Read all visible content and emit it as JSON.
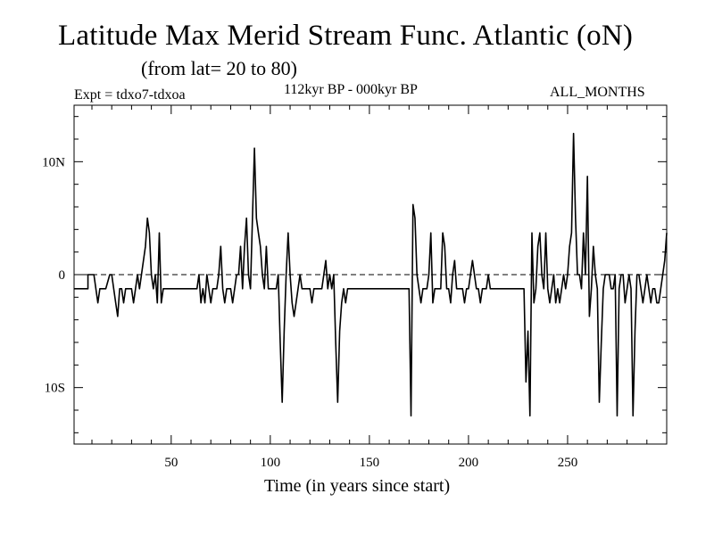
{
  "header": {
    "title": "Latitude Max Merid Stream Func. Atlantic (oN)",
    "subtitle": "(from lat= 20 to 80)",
    "expt": "Expt = tdxo7-tdxoa",
    "period": "112kyr BP - 000kyr BP",
    "months": "ALL_MONTHS"
  },
  "chart_data": {
    "type": "line",
    "title": "Latitude Max Merid Stream Func. Atlantic (oN)",
    "xlabel": "Time (in years since start)",
    "ylabel": "",
    "xlim": [
      1,
      300
    ],
    "ylim": [
      -15,
      15
    ],
    "x_ticks": [
      50,
      100,
      150,
      200,
      250
    ],
    "x_tick_labels": [
      "50",
      "100",
      "150",
      "200",
      "250"
    ],
    "y_ticks": [
      10,
      0,
      -10
    ],
    "y_tick_labels": [
      "10N",
      "0",
      "10S"
    ],
    "reference_line": {
      "y": 0,
      "style": "dashed"
    },
    "grid": false,
    "baseline_value": -1.25,
    "series": [
      {
        "points": [
          [
            1,
            -1.25
          ],
          [
            8,
            -1.25
          ],
          [
            8,
            0
          ],
          [
            11,
            0
          ],
          [
            12,
            -1.25
          ],
          [
            13,
            -2.5
          ],
          [
            14,
            -1.25
          ],
          [
            17,
            -1.25
          ],
          [
            19,
            0
          ],
          [
            20,
            0
          ],
          [
            21,
            -1.25
          ],
          [
            22,
            -2.5
          ],
          [
            23,
            -3.7
          ],
          [
            24,
            -1.25
          ],
          [
            25,
            -1.25
          ],
          [
            26,
            -2.5
          ],
          [
            27,
            -1.25
          ],
          [
            30,
            -1.25
          ],
          [
            31,
            -2.5
          ],
          [
            32,
            -1.25
          ],
          [
            33,
            0
          ],
          [
            34,
            -1.25
          ],
          [
            35,
            0
          ],
          [
            36,
            1.25
          ],
          [
            37,
            2.5
          ],
          [
            38,
            5
          ],
          [
            39,
            3.7
          ],
          [
            40,
            0
          ],
          [
            41,
            -1.25
          ],
          [
            42,
            0
          ],
          [
            43,
            -2.5
          ],
          [
            44,
            3.7
          ],
          [
            45,
            -2.5
          ],
          [
            46,
            -1.25
          ],
          [
            50,
            -1.25
          ],
          [
            63,
            -1.25
          ],
          [
            64,
            0
          ],
          [
            65,
            -2.5
          ],
          [
            66,
            -1.25
          ],
          [
            67,
            -2.5
          ],
          [
            68,
            0
          ],
          [
            69,
            -1.25
          ],
          [
            70,
            -2.5
          ],
          [
            71,
            -1.25
          ],
          [
            73,
            -1.25
          ],
          [
            74,
            0
          ],
          [
            75,
            2.5
          ],
          [
            76,
            -1.25
          ],
          [
            77,
            -2.5
          ],
          [
            78,
            -1.25
          ],
          [
            80,
            -1.25
          ],
          [
            81,
            -2.5
          ],
          [
            82,
            -1.25
          ],
          [
            83,
            0
          ],
          [
            84,
            0
          ],
          [
            85,
            2.5
          ],
          [
            86,
            -1.25
          ],
          [
            87,
            2.5
          ],
          [
            88,
            5
          ],
          [
            89,
            0
          ],
          [
            90,
            -1.25
          ],
          [
            91,
            5
          ],
          [
            92,
            11.2
          ],
          [
            93,
            5
          ],
          [
            94,
            3.7
          ],
          [
            95,
            2.5
          ],
          [
            96,
            0
          ],
          [
            97,
            -1.25
          ],
          [
            98,
            2.5
          ],
          [
            99,
            -1.25
          ],
          [
            100,
            -1.25
          ],
          [
            103,
            -1.25
          ],
          [
            104,
            0
          ],
          [
            105,
            -6
          ],
          [
            106,
            -11.3
          ],
          [
            107,
            -5
          ],
          [
            108,
            0
          ],
          [
            109,
            3.7
          ],
          [
            110,
            0
          ],
          [
            111,
            -2.5
          ],
          [
            112,
            -3.7
          ],
          [
            113,
            -2.5
          ],
          [
            114,
            -1.25
          ],
          [
            115,
            0
          ],
          [
            116,
            -1.25
          ],
          [
            118,
            -1.25
          ],
          [
            120,
            -1.25
          ],
          [
            121,
            -2.5
          ],
          [
            122,
            -1.25
          ],
          [
            123,
            -1.25
          ],
          [
            124,
            -1.25
          ],
          [
            126,
            -1.25
          ],
          [
            127,
            0
          ],
          [
            128,
            1.25
          ],
          [
            129,
            -1.25
          ],
          [
            130,
            0
          ],
          [
            131,
            -1.25
          ],
          [
            132,
            0
          ],
          [
            133,
            -6
          ],
          [
            134,
            -11.3
          ],
          [
            135,
            -5
          ],
          [
            136,
            -2.5
          ],
          [
            137,
            -1.25
          ],
          [
            138,
            -2.5
          ],
          [
            139,
            -1.25
          ],
          [
            150,
            -1.25
          ],
          [
            170,
            -1.25
          ],
          [
            171,
            -12.5
          ],
          [
            172,
            6.2
          ],
          [
            173,
            5
          ],
          [
            174,
            0
          ],
          [
            175,
            -1.25
          ],
          [
            176,
            -2.5
          ],
          [
            177,
            -1.25
          ],
          [
            179,
            -1.25
          ],
          [
            180,
            0
          ],
          [
            181,
            3.7
          ],
          [
            182,
            -2.5
          ],
          [
            183,
            -1.25
          ],
          [
            184,
            -1.25
          ],
          [
            186,
            -1.25
          ],
          [
            187,
            3.7
          ],
          [
            188,
            2.5
          ],
          [
            189,
            -1.25
          ],
          [
            190,
            -1.25
          ],
          [
            191,
            -2.5
          ],
          [
            192,
            0
          ],
          [
            193,
            1.25
          ],
          [
            194,
            -1.25
          ],
          [
            195,
            -1.25
          ],
          [
            197,
            -1.25
          ],
          [
            198,
            -2.5
          ],
          [
            199,
            -1.25
          ],
          [
            200,
            -1.25
          ],
          [
            201,
            0
          ],
          [
            202,
            1.25
          ],
          [
            203,
            0
          ],
          [
            204,
            -1.25
          ],
          [
            205,
            -1.25
          ],
          [
            206,
            -2.5
          ],
          [
            207,
            -1.25
          ],
          [
            209,
            -1.25
          ],
          [
            210,
            0
          ],
          [
            211,
            -1.25
          ],
          [
            215,
            -1.25
          ],
          [
            228,
            -1.25
          ],
          [
            229,
            -9.5
          ],
          [
            230,
            -5
          ],
          [
            231,
            -12.5
          ],
          [
            232,
            3.7
          ],
          [
            233,
            -2.5
          ],
          [
            234,
            -1.25
          ],
          [
            235,
            2.5
          ],
          [
            236,
            3.7
          ],
          [
            237,
            0
          ],
          [
            238,
            -1.25
          ],
          [
            239,
            3.7
          ],
          [
            240,
            -1.25
          ],
          [
            241,
            -2.5
          ],
          [
            242,
            -1.25
          ],
          [
            243,
            0
          ],
          [
            244,
            -2.5
          ],
          [
            245,
            -1.25
          ],
          [
            246,
            -2.5
          ],
          [
            247,
            -1.25
          ],
          [
            248,
            0
          ],
          [
            249,
            -1.25
          ],
          [
            250,
            0
          ],
          [
            251,
            2.5
          ],
          [
            252,
            3.7
          ],
          [
            253,
            12.5
          ],
          [
            254,
            5
          ],
          [
            255,
            0
          ],
          [
            256,
            0
          ],
          [
            257,
            -1.25
          ],
          [
            258,
            3.7
          ],
          [
            259,
            0
          ],
          [
            260,
            8.7
          ],
          [
            261,
            -3.7
          ],
          [
            262,
            -1.25
          ],
          [
            263,
            2.5
          ],
          [
            264,
            0
          ],
          [
            265,
            -1.25
          ],
          [
            266,
            -11.3
          ],
          [
            267,
            -6
          ],
          [
            268,
            -1.25
          ],
          [
            269,
            0
          ],
          [
            271,
            0
          ],
          [
            272,
            -1.25
          ],
          [
            273,
            -1.25
          ],
          [
            274,
            0
          ],
          [
            275,
            -12.5
          ],
          [
            276,
            -1.25
          ],
          [
            277,
            0
          ],
          [
            278,
            0
          ],
          [
            279,
            -2.5
          ],
          [
            280,
            -1.25
          ],
          [
            281,
            0
          ],
          [
            282,
            -1.25
          ],
          [
            283,
            -12.5
          ],
          [
            284,
            -5
          ],
          [
            285,
            0
          ],
          [
            286,
            0
          ],
          [
            287,
            -1.25
          ],
          [
            288,
            -2.5
          ],
          [
            289,
            -1.25
          ],
          [
            290,
            0
          ],
          [
            291,
            -1.25
          ],
          [
            292,
            -2.5
          ],
          [
            293,
            -1.25
          ],
          [
            294,
            -1.25
          ],
          [
            295,
            -2.5
          ],
          [
            296,
            -2.5
          ],
          [
            297,
            -1.25
          ],
          [
            298,
            0
          ],
          [
            299,
            1.25
          ],
          [
            300,
            3.7
          ]
        ]
      }
    ]
  }
}
